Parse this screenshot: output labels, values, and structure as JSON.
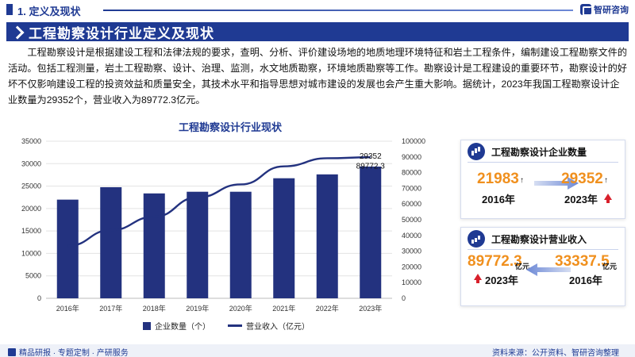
{
  "header": {
    "section_title": "1. 定义及现状",
    "logo_text": "智研咨询"
  },
  "banner": {
    "title": "工程勘察设计行业定义及现状"
  },
  "intro": {
    "text": "工程勘察设计是根据建设工程和法律法规的要求，查明、分析、评价建设场地的地质地理环境特征和岩土工程条件，编制建设工程勘察文件的活动。包括工程测量，岩土工程勘察、设计、治理、监测，水文地质勘察，环境地质勘察等工作。勘察设计是工程建设的重要环节，勘察设计的好坏不仅影响建设工程的投资效益和质量安全，其技术水平和指导思想对城市建设的发展也会产生重大影响。据统计，2023年我国工程勘察设计企业数量为29352个，营业收入为89772.3亿元。"
  },
  "chart_data": {
    "type": "bar",
    "title": "工程勘察设计行业现状",
    "categories": [
      "2016年",
      "2017年",
      "2018年",
      "2019年",
      "2020年",
      "2021年",
      "2022年",
      "2023年"
    ],
    "series": [
      {
        "name": "企业数量（个）",
        "kind": "bar",
        "axis": "left",
        "values": [
          21983,
          24754,
          23369,
          23739,
          23741,
          26748,
          27611,
          29352
        ]
      },
      {
        "name": "营业收入（亿元）",
        "kind": "line",
        "axis": "right",
        "values": [
          33337.5,
          43391.3,
          51915.2,
          64200.9,
          72496.7,
          84016.1,
          89147.8,
          89772.3
        ]
      }
    ],
    "ylim_left": [
      0,
      35000
    ],
    "left_ticks": [
      0,
      5000,
      10000,
      15000,
      20000,
      25000,
      30000,
      35000
    ],
    "ylim_right": [
      0,
      100000
    ],
    "right_ticks": [
      0,
      10000,
      20000,
      30000,
      40000,
      50000,
      60000,
      70000,
      80000,
      90000,
      100000
    ],
    "data_labels": {
      "bar_last": "29352",
      "line_last": "89772.3"
    },
    "legend_position": "bottom",
    "colors": {
      "bar": "#23327f",
      "line": "#23327f"
    }
  },
  "cards": {
    "enterprise": {
      "title": "工程勘察设计企业数量",
      "from_value": "21983",
      "from_year": "2016年",
      "to_value": "29352",
      "to_year": "2023年",
      "up_glyph": "↑"
    },
    "revenue": {
      "title": "工程勘察设计营业收入",
      "latest_value": "89772.3",
      "latest_unit": "亿元",
      "latest_year": "2023年",
      "earlier_value": "33337.5",
      "earlier_unit": "亿元",
      "earlier_year": "2016年"
    }
  },
  "footer": {
    "left_text": "精品研报 · 专题定制 · 产研服务",
    "right_text": "资料来源：公开资料、智研咨询整理"
  }
}
